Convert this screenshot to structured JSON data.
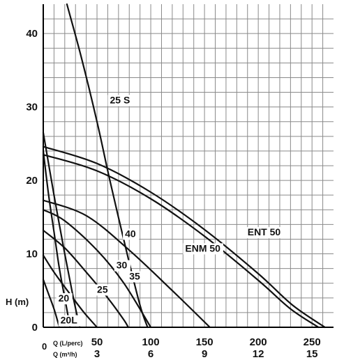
{
  "chart_data": {
    "type": "line",
    "title": "",
    "xlabel": "Q (L/perc)",
    "xlabel_secondary": "Q (m³/h)",
    "ylabel": "H (m)",
    "xlim": [
      0,
      270
    ],
    "ylim": [
      0,
      44
    ],
    "x_ticks": [
      {
        "value": 50,
        "label": "50"
      },
      {
        "value": 100,
        "label": "100"
      },
      {
        "value": 150,
        "label": "150"
      },
      {
        "value": 200,
        "label": "200"
      },
      {
        "value": 250,
        "label": "250"
      }
    ],
    "x2_ticks": [
      {
        "value": 50,
        "label": "3"
      },
      {
        "value": 100,
        "label": "6"
      },
      {
        "value": 150,
        "label": "9"
      },
      {
        "value": 200,
        "label": "12"
      },
      {
        "value": 250,
        "label": "15"
      }
    ],
    "y_ticks": [
      {
        "value": 0,
        "label": "0"
      },
      {
        "value": 10,
        "label": "10"
      },
      {
        "value": 20,
        "label": "20"
      },
      {
        "value": 30,
        "label": "30"
      },
      {
        "value": 40,
        "label": "40"
      }
    ],
    "origin_label": "0",
    "grid": true,
    "series": [
      {
        "name": "25 S",
        "label_pos": [
          62,
          30.5
        ],
        "points": [
          [
            22,
            44
          ],
          [
            35,
            37
          ],
          [
            50,
            28
          ],
          [
            62,
            20
          ],
          [
            78,
            10
          ],
          [
            90,
            3
          ],
          [
            97,
            0
          ]
        ]
      },
      {
        "name": "ENT 50",
        "label_pos": [
          190,
          12.5
        ],
        "points": [
          [
            0,
            24.6
          ],
          [
            50,
            22.3
          ],
          [
            100,
            18.4
          ],
          [
            150,
            13.3
          ],
          [
            200,
            7.3
          ],
          [
            232,
            3
          ],
          [
            262,
            0
          ]
        ]
      },
      {
        "name": "ENM 50",
        "label_pos": [
          132,
          10.3
        ],
        "points": [
          [
            0,
            23.5
          ],
          [
            50,
            21.3
          ],
          [
            100,
            17.5
          ],
          [
            150,
            12.4
          ],
          [
            200,
            6.4
          ],
          [
            230,
            2.5
          ],
          [
            256,
            0
          ]
        ]
      },
      {
        "name": "40",
        "label_pos": [
          76,
          12.3
        ],
        "points": [
          [
            0,
            17.3
          ],
          [
            40,
            15.2
          ],
          [
            80,
            10.5
          ],
          [
            120,
            5
          ],
          [
            155,
            0
          ]
        ]
      },
      {
        "name": "35",
        "label_pos": [
          80,
          6.5
        ],
        "points": [
          [
            0,
            16
          ],
          [
            20,
            14.5
          ],
          [
            50,
            10.5
          ],
          [
            75,
            6
          ],
          [
            100,
            0
          ]
        ]
      },
      {
        "name": "30",
        "label_pos": [
          68,
          8
        ],
        "points": [
          [
            0,
            13.2
          ],
          [
            20,
            10.8
          ],
          [
            40,
            7.5
          ],
          [
            60,
            4
          ],
          [
            75,
            1
          ],
          [
            79,
            0
          ]
        ]
      },
      {
        "name": "25",
        "label_pos": [
          50,
          4.7
        ],
        "points": [
          [
            0,
            9.8
          ],
          [
            10,
            7.5
          ],
          [
            25,
            4.5
          ],
          [
            38,
            2
          ],
          [
            50,
            0
          ]
        ]
      },
      {
        "name": "20",
        "label_pos": [
          14,
          3.5
        ],
        "points": [
          [
            0,
            26.5
          ],
          [
            10,
            18
          ],
          [
            20,
            10
          ],
          [
            28,
            4
          ],
          [
            34,
            0
          ]
        ]
      },
      {
        "name": "20L",
        "label_pos": [
          16,
          0.5
        ],
        "points": [
          [
            0,
            6.5
          ],
          [
            5,
            4.5
          ],
          [
            10,
            2.5
          ],
          [
            15,
            0
          ]
        ]
      },
      {
        "name": "",
        "points": [
          [
            0,
            24
          ],
          [
            5,
            18
          ],
          [
            10,
            13
          ],
          [
            15,
            8
          ],
          [
            20,
            4
          ],
          [
            25,
            0
          ]
        ]
      }
    ]
  }
}
